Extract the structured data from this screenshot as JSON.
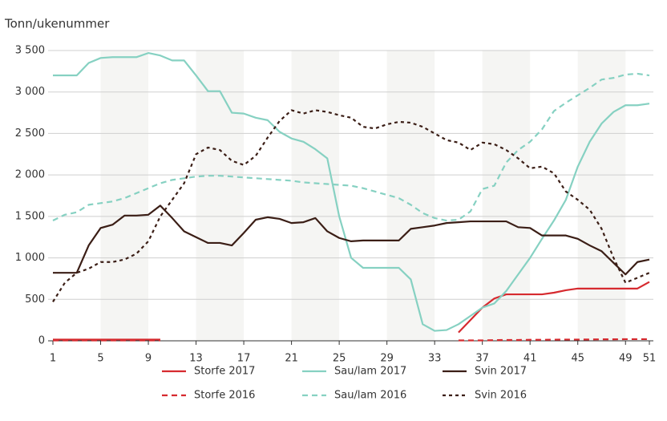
{
  "chart_data": {
    "type": "line",
    "y_label": "Tonn/ukenummer",
    "x": [
      1,
      2,
      3,
      4,
      5,
      6,
      7,
      8,
      9,
      10,
      11,
      12,
      13,
      14,
      15,
      16,
      17,
      18,
      19,
      20,
      21,
      22,
      23,
      24,
      25,
      26,
      27,
      28,
      29,
      30,
      31,
      32,
      33,
      34,
      35,
      36,
      37,
      38,
      39,
      40,
      41,
      42,
      43,
      44,
      45,
      46,
      47,
      48,
      49,
      50,
      51
    ],
    "xlim": [
      1,
      51
    ],
    "xticks": [
      1,
      5,
      9,
      13,
      17,
      21,
      25,
      29,
      33,
      37,
      41,
      45,
      49,
      51
    ],
    "ylim": [
      0,
      3500
    ],
    "yticks": [
      0,
      500,
      {
        "value": 1000,
        "label": "1 000"
      },
      {
        "value": 1500,
        "label": "1 500"
      },
      {
        "value": 2000,
        "label": "2 000"
      },
      {
        "value": 2500,
        "label": "2 500"
      },
      {
        "value": 3000,
        "label": "3 000"
      },
      {
        "value": 3500,
        "label": "3 500"
      }
    ],
    "grid": true,
    "shaded_bands": true,
    "legend": "bottom",
    "series": [
      {
        "name": "Storfe 2017",
        "color": "#d62a2f",
        "dash": "solid",
        "values": [
          15,
          15,
          15,
          15,
          15,
          15,
          15,
          15,
          15,
          15,
          null,
          null,
          null,
          null,
          null,
          null,
          null,
          null,
          null,
          null,
          null,
          null,
          null,
          null,
          null,
          null,
          null,
          null,
          null,
          null,
          null,
          null,
          null,
          null,
          100,
          250,
          400,
          510,
          560,
          560,
          560,
          560,
          580,
          610,
          630,
          630,
          630,
          630,
          630,
          630,
          710
        ]
      },
      {
        "name": "Sau/lam 2017",
        "color": "#86d1c2",
        "dash": "solid",
        "values": [
          3200,
          3200,
          3200,
          3350,
          3410,
          3420,
          3420,
          3420,
          3470,
          3440,
          3380,
          3380,
          3200,
          3010,
          3010,
          2750,
          2740,
          2690,
          2660,
          2520,
          2440,
          2400,
          2310,
          2200,
          1500,
          1000,
          880,
          880,
          880,
          880,
          740,
          200,
          120,
          130,
          200,
          300,
          400,
          450,
          600,
          800,
          1000,
          1230,
          1450,
          1700,
          2100,
          2400,
          2620,
          2760,
          2840,
          2840,
          2860
        ]
      },
      {
        "name": "Svin 2017",
        "color": "#3b1e16",
        "dash": "solid",
        "values": [
          820,
          820,
          820,
          1150,
          1360,
          1400,
          1510,
          1510,
          1520,
          1630,
          1480,
          1320,
          1250,
          1180,
          1180,
          1150,
          1300,
          1460,
          1490,
          1470,
          1420,
          1430,
          1480,
          1320,
          1240,
          1200,
          1210,
          1210,
          1210,
          1210,
          1350,
          1370,
          1390,
          1420,
          1430,
          1440,
          1440,
          1440,
          1440,
          1370,
          1360,
          1270,
          1270,
          1270,
          1230,
          1150,
          1080,
          940,
          800,
          950,
          980
        ]
      },
      {
        "name": "Storfe 2016",
        "color": "#d62a2f",
        "dash": "dashed",
        "values": [
          5,
          5,
          5,
          5,
          5,
          5,
          5,
          5,
          5,
          5,
          null,
          null,
          null,
          null,
          null,
          null,
          null,
          null,
          null,
          null,
          null,
          null,
          null,
          null,
          null,
          null,
          null,
          null,
          null,
          null,
          null,
          null,
          null,
          null,
          5,
          5,
          5,
          8,
          10,
          10,
          12,
          12,
          14,
          15,
          15,
          16,
          18,
          18,
          20,
          20,
          20
        ]
      },
      {
        "name": "Sau/lam 2016",
        "color": "#86d1c2",
        "dash": "dashed",
        "values": [
          1450,
          1520,
          1550,
          1640,
          1660,
          1680,
          1720,
          1780,
          1840,
          1900,
          1940,
          1960,
          1980,
          1990,
          1990,
          1980,
          1970,
          1960,
          1950,
          1940,
          1930,
          1910,
          1900,
          1890,
          1880,
          1870,
          1840,
          1800,
          1760,
          1720,
          1640,
          1540,
          1480,
          1450,
          1460,
          1560,
          1830,
          1870,
          2150,
          2300,
          2400,
          2550,
          2770,
          2870,
          2960,
          3050,
          3150,
          3170,
          3210,
          3220,
          3200
        ]
      },
      {
        "name": "Svin 2016",
        "color": "#3b1e16",
        "dash": "dotted",
        "values": [
          470,
          700,
          820,
          870,
          950,
          950,
          980,
          1050,
          1200,
          1500,
          1700,
          1900,
          2250,
          2330,
          2300,
          2170,
          2120,
          2230,
          2450,
          2650,
          2780,
          2740,
          2780,
          2760,
          2720,
          2690,
          2580,
          2560,
          2610,
          2640,
          2630,
          2580,
          2500,
          2420,
          2390,
          2300,
          2390,
          2370,
          2300,
          2200,
          2080,
          2100,
          2020,
          1800,
          1700,
          1580,
          1350,
          1000,
          700,
          760,
          820
        ]
      }
    ]
  }
}
